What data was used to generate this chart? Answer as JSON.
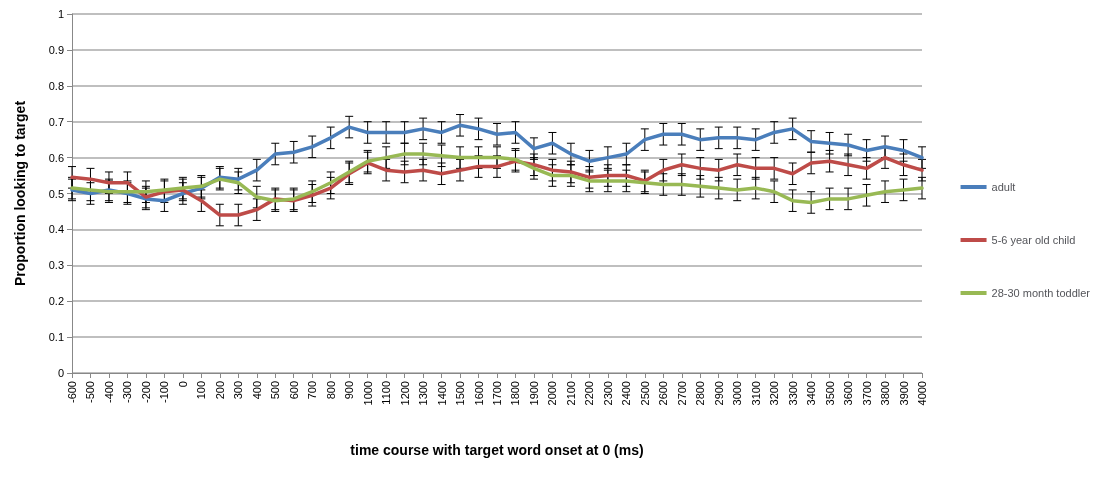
{
  "chart_data": {
    "type": "line",
    "xlabel": "time course with target word onset at 0 (ms)",
    "ylabel": "Proportion looking to target",
    "x": [
      -600,
      -500,
      -400,
      -300,
      -200,
      -100,
      0,
      100,
      200,
      300,
      400,
      500,
      600,
      700,
      800,
      900,
      1000,
      1100,
      1200,
      1300,
      1400,
      1500,
      1600,
      1700,
      1800,
      1900,
      2000,
      2100,
      2200,
      2300,
      2400,
      2500,
      2600,
      2700,
      2800,
      2900,
      3000,
      3100,
      3200,
      3300,
      3400,
      3500,
      3600,
      3700,
      3800,
      3900,
      4000
    ],
    "series": [
      {
        "name": "adult",
        "color": "#4a7ebb",
        "values": [
          0.51,
          0.5,
          0.51,
          0.5,
          0.485,
          0.48,
          0.5,
          0.515,
          0.545,
          0.54,
          0.565,
          0.61,
          0.615,
          0.63,
          0.655,
          0.685,
          0.67,
          0.67,
          0.67,
          0.68,
          0.67,
          0.69,
          0.68,
          0.665,
          0.67,
          0.625,
          0.64,
          0.61,
          0.59,
          0.6,
          0.61,
          0.65,
          0.665,
          0.665,
          0.65,
          0.655,
          0.655,
          0.65,
          0.67,
          0.68,
          0.645,
          0.64,
          0.635,
          0.62,
          0.63,
          0.62,
          0.6
        ],
        "errors": [
          0.03,
          0.03,
          0.03,
          0.03,
          0.03,
          0.03,
          0.03,
          0.03,
          0.03,
          0.03,
          0.03,
          0.03,
          0.03,
          0.03,
          0.03,
          0.03,
          0.03,
          0.03,
          0.03,
          0.03,
          0.03,
          0.03,
          0.03,
          0.03,
          0.03,
          0.03,
          0.03,
          0.03,
          0.03,
          0.03,
          0.03,
          0.03,
          0.03,
          0.03,
          0.03,
          0.03,
          0.03,
          0.03,
          0.03,
          0.03,
          0.03,
          0.03,
          0.03,
          0.03,
          0.03,
          0.03,
          0.03
        ]
      },
      {
        "name": "5-6 year old child",
        "color": "#be4b48",
        "values": [
          0.545,
          0.54,
          0.53,
          0.53,
          0.49,
          0.505,
          0.51,
          0.48,
          0.44,
          0.44,
          0.455,
          0.485,
          0.48,
          0.495,
          0.515,
          0.555,
          0.585,
          0.565,
          0.56,
          0.565,
          0.555,
          0.565,
          0.575,
          0.575,
          0.59,
          0.58,
          0.565,
          0.56,
          0.545,
          0.55,
          0.55,
          0.535,
          0.565,
          0.58,
          0.57,
          0.565,
          0.58,
          0.57,
          0.57,
          0.555,
          0.585,
          0.59,
          0.58,
          0.57,
          0.6,
          0.58,
          0.565
        ],
        "errors": [
          0.03,
          0.03,
          0.03,
          0.03,
          0.03,
          0.03,
          0.03,
          0.03,
          0.03,
          0.03,
          0.03,
          0.03,
          0.03,
          0.03,
          0.03,
          0.03,
          0.03,
          0.03,
          0.03,
          0.03,
          0.03,
          0.03,
          0.03,
          0.03,
          0.03,
          0.03,
          0.03,
          0.03,
          0.03,
          0.03,
          0.03,
          0.03,
          0.03,
          0.03,
          0.03,
          0.03,
          0.03,
          0.03,
          0.03,
          0.03,
          0.03,
          0.03,
          0.03,
          0.03,
          0.03,
          0.03,
          0.03
        ]
      },
      {
        "name": "28-30 month toddler",
        "color": "#98b954",
        "values": [
          0.515,
          0.51,
          0.505,
          0.505,
          0.505,
          0.51,
          0.515,
          0.52,
          0.54,
          0.53,
          0.49,
          0.48,
          0.485,
          0.505,
          0.53,
          0.56,
          0.59,
          0.6,
          0.61,
          0.61,
          0.605,
          0.6,
          0.6,
          0.6,
          0.595,
          0.57,
          0.55,
          0.55,
          0.535,
          0.535,
          0.535,
          0.53,
          0.525,
          0.525,
          0.52,
          0.515,
          0.51,
          0.515,
          0.505,
          0.48,
          0.475,
          0.485,
          0.485,
          0.495,
          0.505,
          0.51,
          0.515
        ],
        "errors": [
          0.03,
          0.03,
          0.03,
          0.03,
          0.03,
          0.03,
          0.03,
          0.03,
          0.03,
          0.03,
          0.03,
          0.03,
          0.03,
          0.03,
          0.03,
          0.03,
          0.03,
          0.03,
          0.03,
          0.03,
          0.03,
          0.03,
          0.03,
          0.03,
          0.03,
          0.03,
          0.03,
          0.03,
          0.03,
          0.03,
          0.03,
          0.03,
          0.03,
          0.03,
          0.03,
          0.03,
          0.03,
          0.03,
          0.03,
          0.03,
          0.03,
          0.03,
          0.03,
          0.03,
          0.03,
          0.03,
          0.03
        ]
      }
    ],
    "xlim": [
      -600,
      4000
    ],
    "xticks": [
      -600,
      -500,
      -400,
      -300,
      -200,
      -100,
      0,
      100,
      200,
      300,
      400,
      500,
      600,
      700,
      800,
      900,
      1000,
      1100,
      1200,
      1300,
      1400,
      1500,
      1600,
      1700,
      1800,
      1900,
      2000,
      2100,
      2200,
      2300,
      2400,
      2500,
      2600,
      2700,
      2800,
      2900,
      3000,
      3100,
      3200,
      3300,
      3400,
      3500,
      3600,
      3700,
      3800,
      3900,
      4000
    ],
    "ylim": [
      0,
      1
    ],
    "yticks": [
      0,
      0.1,
      0.2,
      0.3,
      0.4,
      0.5,
      0.6,
      0.7,
      0.8,
      0.9,
      1
    ],
    "grid": "y",
    "legend": "right",
    "marker": "none",
    "line_style": "solid"
  }
}
